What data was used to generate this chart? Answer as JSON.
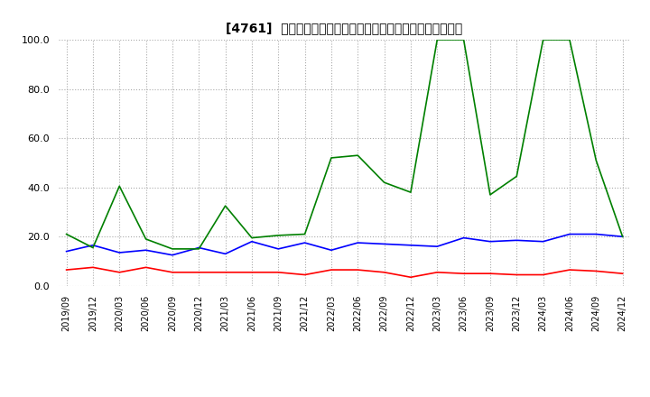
{
  "title": "[4761]  売上債権回転率、買入債務回転率、在庫回転率の推移",
  "ylim": [
    0.0,
    100.0
  ],
  "yticks": [
    0.0,
    20.0,
    40.0,
    60.0,
    80.0,
    100.0
  ],
  "background_color": "#ffffff",
  "grid_color": "#aaaaaa",
  "dates": [
    "2019/09",
    "2019/12",
    "2020/03",
    "2020/06",
    "2020/09",
    "2020/12",
    "2021/03",
    "2021/06",
    "2021/09",
    "2021/12",
    "2022/03",
    "2022/06",
    "2022/09",
    "2022/12",
    "2023/03",
    "2023/06",
    "2023/09",
    "2023/12",
    "2024/03",
    "2024/06",
    "2024/09",
    "2024/12"
  ],
  "売上債権回転率": [
    6.5,
    7.5,
    5.5,
    7.5,
    5.5,
    5.5,
    5.5,
    5.5,
    5.5,
    4.5,
    6.5,
    6.5,
    5.5,
    3.5,
    5.5,
    5.0,
    5.0,
    4.5,
    4.5,
    6.5,
    6.0,
    5.0
  ],
  "買入債務回転率": [
    14.0,
    16.5,
    13.5,
    14.5,
    12.5,
    15.5,
    13.0,
    18.0,
    15.0,
    17.5,
    14.5,
    17.5,
    17.0,
    16.5,
    16.0,
    19.5,
    18.0,
    18.5,
    18.0,
    21.0,
    21.0,
    20.0
  ],
  "在庫回転率": [
    21.0,
    15.5,
    40.5,
    19.0,
    15.0,
    15.0,
    32.5,
    19.5,
    20.5,
    21.0,
    52.0,
    53.0,
    42.0,
    38.0,
    100.0,
    100.0,
    37.0,
    44.5,
    100.0,
    100.0,
    51.0,
    20.0
  ],
  "line_colors": {
    "売上債権回転率": "#ff0000",
    "買入債務回転率": "#0000ff",
    "在庫回転率": "#008000"
  },
  "legend_labels": [
    "売上債権回転率",
    "買入債務回転率",
    "在庫回転率"
  ]
}
